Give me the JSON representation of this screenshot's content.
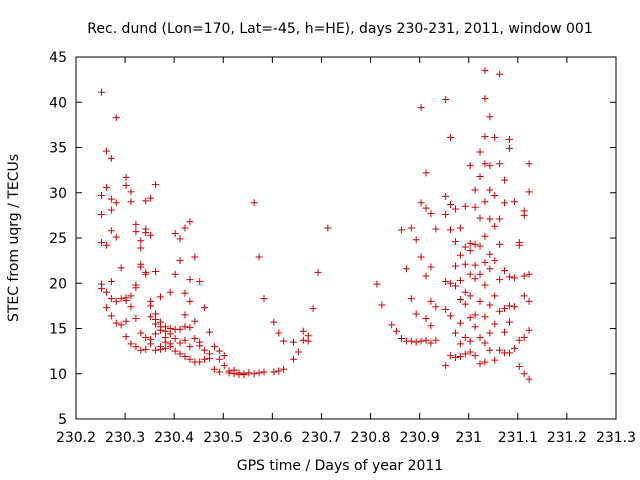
{
  "chart_data": {
    "type": "scatter",
    "title": "Rec. dund (Lon=170, Lat=-45, h=HE), days 230-231, 2011, window 001",
    "xlabel": "GPS time / Days of year 2011",
    "ylabel": "STEC from uqrg / TECUs",
    "xlim": [
      230.2,
      231.3
    ],
    "ylim": [
      5,
      45
    ],
    "xticks": [
      230.2,
      230.3,
      230.4,
      230.5,
      230.6,
      230.7,
      230.8,
      230.9,
      231.0,
      231.1,
      231.2,
      231.3
    ],
    "xtick_labels": [
      "230.2",
      "230.3",
      "230.4",
      "230.5",
      "230.6",
      "230.7",
      "230.8",
      "230.9",
      "231",
      "231.1",
      "231.2",
      "231.3"
    ],
    "yticks": [
      5,
      10,
      15,
      20,
      25,
      30,
      35,
      40,
      45
    ],
    "ytick_labels": [
      "5",
      "10",
      "15",
      "20",
      "25",
      "30",
      "35",
      "40",
      "45"
    ],
    "grid": false,
    "legend": "none",
    "marker": "+",
    "color": "#d40000",
    "points": [
      [
        230.252,
        41.1
      ],
      [
        230.252,
        29.7
      ],
      [
        230.252,
        27.6
      ],
      [
        230.252,
        24.5
      ],
      [
        230.252,
        19.9
      ],
      [
        230.252,
        19.4
      ],
      [
        230.262,
        34.6
      ],
      [
        230.262,
        30.6
      ],
      [
        230.262,
        24.2
      ],
      [
        230.262,
        19.0
      ],
      [
        230.262,
        17.3
      ],
      [
        230.272,
        33.8
      ],
      [
        230.272,
        29.3
      ],
      [
        230.272,
        28.1
      ],
      [
        230.272,
        25.8
      ],
      [
        230.272,
        20.2
      ],
      [
        230.272,
        18.3
      ],
      [
        230.272,
        16.4
      ],
      [
        230.282,
        38.3
      ],
      [
        230.282,
        28.9
      ],
      [
        230.282,
        25.1
      ],
      [
        230.282,
        18.0
      ],
      [
        230.282,
        15.6
      ],
      [
        230.292,
        21.7
      ],
      [
        230.292,
        18.3
      ],
      [
        230.292,
        15.4
      ],
      [
        230.302,
        31.7
      ],
      [
        230.302,
        30.8
      ],
      [
        230.302,
        18.4
      ],
      [
        230.302,
        18.1
      ],
      [
        230.302,
        15.8
      ],
      [
        230.302,
        14.1
      ],
      [
        230.312,
        30.1
      ],
      [
        230.312,
        29.0
      ],
      [
        230.312,
        18.6
      ],
      [
        230.312,
        17.4
      ],
      [
        230.312,
        13.3
      ],
      [
        230.322,
        26.5
      ],
      [
        230.322,
        25.7
      ],
      [
        230.322,
        19.8
      ],
      [
        230.322,
        19.5
      ],
      [
        230.322,
        16.1
      ],
      [
        230.322,
        13.0
      ],
      [
        230.332,
        24.7
      ],
      [
        230.332,
        23.9
      ],
      [
        230.332,
        22.1
      ],
      [
        230.332,
        21.8
      ],
      [
        230.332,
        14.5
      ],
      [
        230.332,
        12.6
      ],
      [
        230.342,
        29.1
      ],
      [
        230.342,
        26.0
      ],
      [
        230.342,
        25.6
      ],
      [
        230.342,
        21.2
      ],
      [
        230.342,
        21.0
      ],
      [
        230.342,
        14.0
      ],
      [
        230.342,
        12.7
      ],
      [
        230.352,
        29.4
      ],
      [
        230.352,
        25.3
      ],
      [
        230.352,
        18.0
      ],
      [
        230.352,
        17.5
      ],
      [
        230.352,
        16.3
      ],
      [
        230.352,
        13.8
      ],
      [
        230.352,
        13.3
      ],
      [
        230.362,
        30.9
      ],
      [
        230.362,
        21.3
      ],
      [
        230.362,
        16.6
      ],
      [
        230.362,
        16.0
      ],
      [
        230.362,
        15.5
      ],
      [
        230.362,
        14.4
      ],
      [
        230.362,
        12.6
      ],
      [
        230.372,
        18.5
      ],
      [
        230.372,
        15.7
      ],
      [
        230.372,
        15.2
      ],
      [
        230.372,
        14.8
      ],
      [
        230.372,
        13.0
      ],
      [
        230.372,
        12.7
      ],
      [
        230.382,
        15.2
      ],
      [
        230.382,
        14.7
      ],
      [
        230.382,
        14.0
      ],
      [
        230.382,
        13.5
      ],
      [
        230.382,
        12.8
      ],
      [
        230.392,
        19.0
      ],
      [
        230.392,
        15.0
      ],
      [
        230.392,
        14.4
      ],
      [
        230.392,
        13.3
      ],
      [
        230.392,
        13.0
      ],
      [
        230.402,
        25.5
      ],
      [
        230.402,
        21.0
      ],
      [
        230.402,
        14.9
      ],
      [
        230.402,
        13.9
      ],
      [
        230.402,
        12.5
      ],
      [
        230.412,
        24.9
      ],
      [
        230.412,
        22.5
      ],
      [
        230.412,
        14.9
      ],
      [
        230.412,
        13.4
      ],
      [
        230.412,
        12.2
      ],
      [
        230.422,
        26.1
      ],
      [
        230.422,
        18.9
      ],
      [
        230.422,
        16.5
      ],
      [
        230.422,
        15.2
      ],
      [
        230.422,
        13.7
      ],
      [
        230.422,
        11.9
      ],
      [
        230.432,
        26.8
      ],
      [
        230.432,
        20.4
      ],
      [
        230.432,
        18.0
      ],
      [
        230.432,
        15.1
      ],
      [
        230.432,
        13.0
      ],
      [
        230.432,
        11.6
      ],
      [
        230.442,
        22.9
      ],
      [
        230.442,
        15.8
      ],
      [
        230.442,
        13.9
      ],
      [
        230.442,
        11.3
      ],
      [
        230.452,
        20.2
      ],
      [
        230.452,
        13.5
      ],
      [
        230.452,
        13.1
      ],
      [
        230.452,
        11.3
      ],
      [
        230.462,
        17.3
      ],
      [
        230.462,
        12.6
      ],
      [
        230.462,
        11.6
      ],
      [
        230.472,
        14.6
      ],
      [
        230.472,
        12.2
      ],
      [
        230.472,
        11.7
      ],
      [
        230.482,
        13.0
      ],
      [
        230.482,
        10.5
      ],
      [
        230.492,
        12.5
      ],
      [
        230.492,
        11.6
      ],
      [
        230.492,
        10.2
      ],
      [
        230.502,
        12.0
      ],
      [
        230.502,
        10.9
      ],
      [
        230.512,
        10.1
      ],
      [
        230.512,
        10.3
      ],
      [
        230.522,
        10.0
      ],
      [
        230.522,
        10.4
      ],
      [
        230.532,
        9.9
      ],
      [
        230.532,
        10.1
      ],
      [
        230.542,
        10.0
      ],
      [
        230.542,
        9.9
      ],
      [
        230.552,
        10.1
      ],
      [
        230.563,
        28.9
      ],
      [
        230.563,
        10.0
      ],
      [
        230.573,
        22.9
      ],
      [
        230.573,
        10.1
      ],
      [
        230.583,
        18.3
      ],
      [
        230.583,
        10.2
      ],
      [
        230.603,
        15.7
      ],
      [
        230.603,
        10.2
      ],
      [
        230.613,
        14.5
      ],
      [
        230.613,
        10.3
      ],
      [
        230.623,
        13.6
      ],
      [
        230.623,
        10.5
      ],
      [
        230.643,
        13.5
      ],
      [
        230.643,
        11.6
      ],
      [
        230.653,
        12.4
      ],
      [
        230.663,
        13.7
      ],
      [
        230.663,
        14.7
      ],
      [
        230.673,
        13.6
      ],
      [
        230.673,
        14.2
      ],
      [
        230.683,
        17.2
      ],
      [
        230.693,
        21.2
      ],
      [
        230.713,
        26.1
      ],
      [
        230.813,
        19.9
      ],
      [
        230.823,
        17.6
      ],
      [
        230.843,
        15.4
      ],
      [
        230.853,
        14.7
      ],
      [
        230.863,
        25.9
      ],
      [
        230.863,
        13.9
      ],
      [
        230.873,
        21.6
      ],
      [
        230.873,
        13.6
      ],
      [
        230.883,
        26.1
      ],
      [
        230.883,
        18.3
      ],
      [
        230.883,
        13.6
      ],
      [
        230.893,
        24.8
      ],
      [
        230.893,
        16.6
      ],
      [
        230.893,
        13.5
      ],
      [
        230.903,
        39.4
      ],
      [
        230.903,
        28.9
      ],
      [
        230.903,
        22.9
      ],
      [
        230.903,
        13.6
      ],
      [
        230.913,
        32.2
      ],
      [
        230.913,
        28.3
      ],
      [
        230.913,
        20.8
      ],
      [
        230.913,
        16.1
      ],
      [
        230.913,
        13.7
      ],
      [
        230.923,
        27.7
      ],
      [
        230.923,
        21.8
      ],
      [
        230.923,
        18.0
      ],
      [
        230.923,
        15.3
      ],
      [
        230.923,
        13.4
      ],
      [
        230.933,
        26.0
      ],
      [
        230.933,
        17.4
      ],
      [
        230.933,
        13.7
      ],
      [
        230.953,
        40.3
      ],
      [
        230.953,
        29.6
      ],
      [
        230.953,
        27.6
      ],
      [
        230.953,
        20.2
      ],
      [
        230.953,
        17.1
      ],
      [
        230.953,
        10.9
      ],
      [
        230.963,
        36.1
      ],
      [
        230.963,
        28.7
      ],
      [
        230.963,
        25.9
      ],
      [
        230.963,
        20.0
      ],
      [
        230.963,
        16.4
      ],
      [
        230.963,
        12.0
      ],
      [
        230.973,
        28.2
      ],
      [
        230.973,
        24.6
      ],
      [
        230.973,
        21.9
      ],
      [
        230.973,
        19.7
      ],
      [
        230.973,
        14.5
      ],
      [
        230.973,
        11.8
      ],
      [
        230.983,
        26.1
      ],
      [
        230.983,
        23.1
      ],
      [
        230.983,
        20.3
      ],
      [
        230.983,
        18.2
      ],
      [
        230.983,
        15.6
      ],
      [
        230.983,
        13.3
      ],
      [
        230.983,
        11.9
      ],
      [
        230.993,
        28.5
      ],
      [
        230.993,
        24.0
      ],
      [
        230.993,
        22.1
      ],
      [
        230.993,
        19.0
      ],
      [
        230.993,
        17.7
      ],
      [
        230.993,
        14.0
      ],
      [
        230.993,
        12.2
      ],
      [
        231.003,
        33.0
      ],
      [
        231.003,
        24.4
      ],
      [
        231.003,
        23.6
      ],
      [
        231.003,
        21.0
      ],
      [
        231.003,
        18.6
      ],
      [
        231.003,
        16.2
      ],
      [
        231.003,
        13.6
      ],
      [
        231.003,
        12.4
      ],
      [
        231.013,
        30.3
      ],
      [
        231.013,
        28.4
      ],
      [
        231.013,
        24.3
      ],
      [
        231.013,
        22.0
      ],
      [
        231.013,
        20.5
      ],
      [
        231.013,
        16.5
      ],
      [
        231.013,
        15.2
      ],
      [
        231.013,
        12.0
      ],
      [
        231.023,
        34.5
      ],
      [
        231.023,
        31.8
      ],
      [
        231.023,
        27.2
      ],
      [
        231.023,
        24.1
      ],
      [
        231.023,
        21.0
      ],
      [
        231.023,
        18.0
      ],
      [
        231.023,
        14.0
      ],
      [
        231.023,
        11.1
      ],
      [
        231.033,
        43.5
      ],
      [
        231.033,
        40.4
      ],
      [
        231.033,
        36.2
      ],
      [
        231.033,
        33.2
      ],
      [
        231.033,
        29.0
      ],
      [
        231.033,
        25.2
      ],
      [
        231.033,
        22.3
      ],
      [
        231.033,
        19.8
      ],
      [
        231.033,
        16.3
      ],
      [
        231.033,
        13.4
      ],
      [
        231.033,
        11.3
      ],
      [
        231.043,
        38.4
      ],
      [
        231.043,
        33.0
      ],
      [
        231.043,
        30.3
      ],
      [
        231.043,
        27.1
      ],
      [
        231.043,
        23.2
      ],
      [
        231.043,
        21.6
      ],
      [
        231.043,
        17.6
      ],
      [
        231.043,
        14.5
      ],
      [
        231.043,
        12.6
      ],
      [
        231.053,
        36.1
      ],
      [
        231.053,
        29.7
      ],
      [
        231.053,
        26.3
      ],
      [
        231.053,
        22.5
      ],
      [
        231.053,
        18.6
      ],
      [
        231.053,
        15.5
      ],
      [
        231.053,
        11.5
      ],
      [
        231.063,
        43.1
      ],
      [
        231.063,
        33.2
      ],
      [
        231.063,
        27.1
      ],
      [
        231.063,
        24.3
      ],
      [
        231.063,
        20.4
      ],
      [
        231.063,
        16.9
      ],
      [
        231.063,
        12.6
      ],
      [
        231.073,
        31.4
      ],
      [
        231.073,
        28.9
      ],
      [
        231.073,
        21.4
      ],
      [
        231.073,
        17.2
      ],
      [
        231.073,
        14.6
      ],
      [
        231.073,
        12.3
      ],
      [
        231.083,
        35.9
      ],
      [
        231.083,
        34.9
      ],
      [
        231.083,
        20.7
      ],
      [
        231.083,
        17.5
      ],
      [
        231.083,
        15.7
      ],
      [
        231.083,
        12.3
      ],
      [
        231.093,
        29.0
      ],
      [
        231.093,
        20.6
      ],
      [
        231.093,
        17.4
      ],
      [
        231.093,
        12.8
      ],
      [
        231.103,
        24.5
      ],
      [
        231.103,
        24.2
      ],
      [
        231.103,
        13.7
      ],
      [
        231.103,
        10.8
      ],
      [
        231.113,
        28.0
      ],
      [
        231.113,
        27.5
      ],
      [
        231.113,
        20.8
      ],
      [
        231.113,
        18.6
      ],
      [
        231.113,
        14.0
      ],
      [
        231.113,
        10.0
      ],
      [
        231.123,
        33.2
      ],
      [
        231.123,
        30.1
      ],
      [
        231.123,
        21.0
      ],
      [
        231.123,
        18.0
      ],
      [
        231.123,
        14.8
      ],
      [
        231.123,
        9.4
      ]
    ]
  }
}
